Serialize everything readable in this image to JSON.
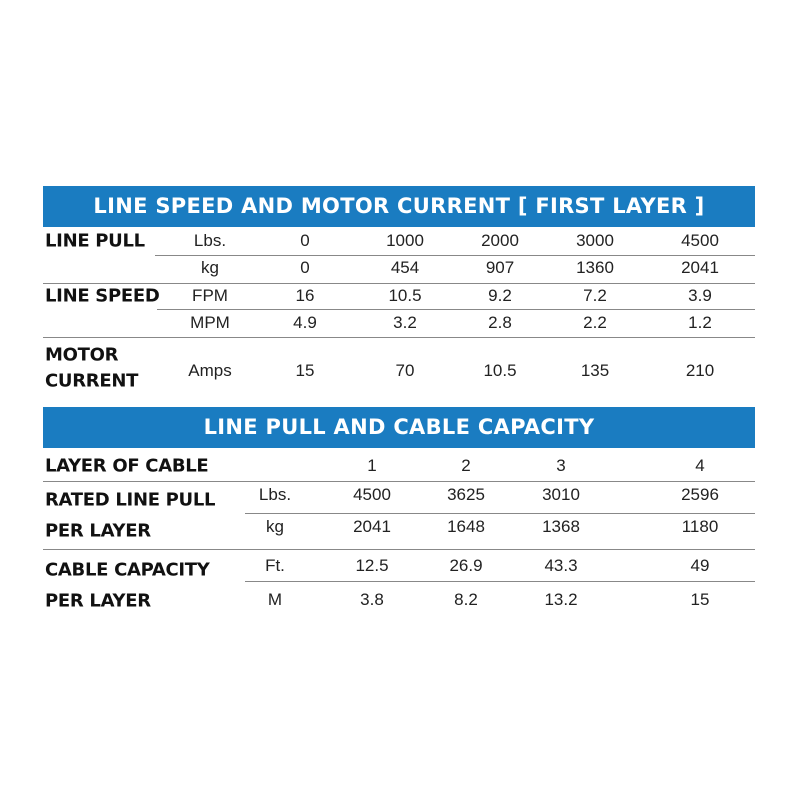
{
  "table1": {
    "title": "LINE SPEED AND MOTOR CURRENT [ FIRST LAYER ]",
    "rows": [
      {
        "label": "LINE PULL",
        "unit": "Lbs.",
        "values": [
          "0",
          "1000",
          "2000",
          "3000",
          "4500"
        ]
      },
      {
        "label": "",
        "unit": "kg",
        "values": [
          "0",
          "454",
          "907",
          "1360",
          "2041"
        ]
      },
      {
        "label": "LINE SPEED",
        "unit": "FPM",
        "values": [
          "16",
          "10.5",
          "9.2",
          "7.2",
          "3.9"
        ]
      },
      {
        "label": "",
        "unit": "MPM",
        "values": [
          "4.9",
          "3.2",
          "2.8",
          "2.2",
          "1.2"
        ]
      },
      {
        "label": "MOTOR",
        "label2": "CURRENT",
        "unit": "Amps",
        "values": [
          "15",
          "70",
          "10.5",
          "135",
          "210"
        ]
      }
    ]
  },
  "table2": {
    "title": "LINE PULL AND CABLE CAPACITY",
    "header": {
      "label": "LAYER OF CABLE",
      "values": [
        "1",
        "2",
        "3",
        "4"
      ]
    },
    "rows": [
      {
        "label": "RATED LINE PULL",
        "unit": "Lbs.",
        "values": [
          "4500",
          "3625",
          "3010",
          "2596"
        ]
      },
      {
        "label": "PER LAYER",
        "unit": "kg",
        "values": [
          "2041",
          "1648",
          "1368",
          "1180"
        ]
      },
      {
        "label": "CABLE CAPACITY",
        "unit": "Ft.",
        "values": [
          "12.5",
          "26.9",
          "43.3",
          "49"
        ]
      },
      {
        "label": "PER LAYER",
        "unit": "M",
        "values": [
          "3.8",
          "8.2",
          "13.2",
          "15"
        ]
      }
    ]
  },
  "colors": {
    "banner": "#1a7cc1"
  }
}
